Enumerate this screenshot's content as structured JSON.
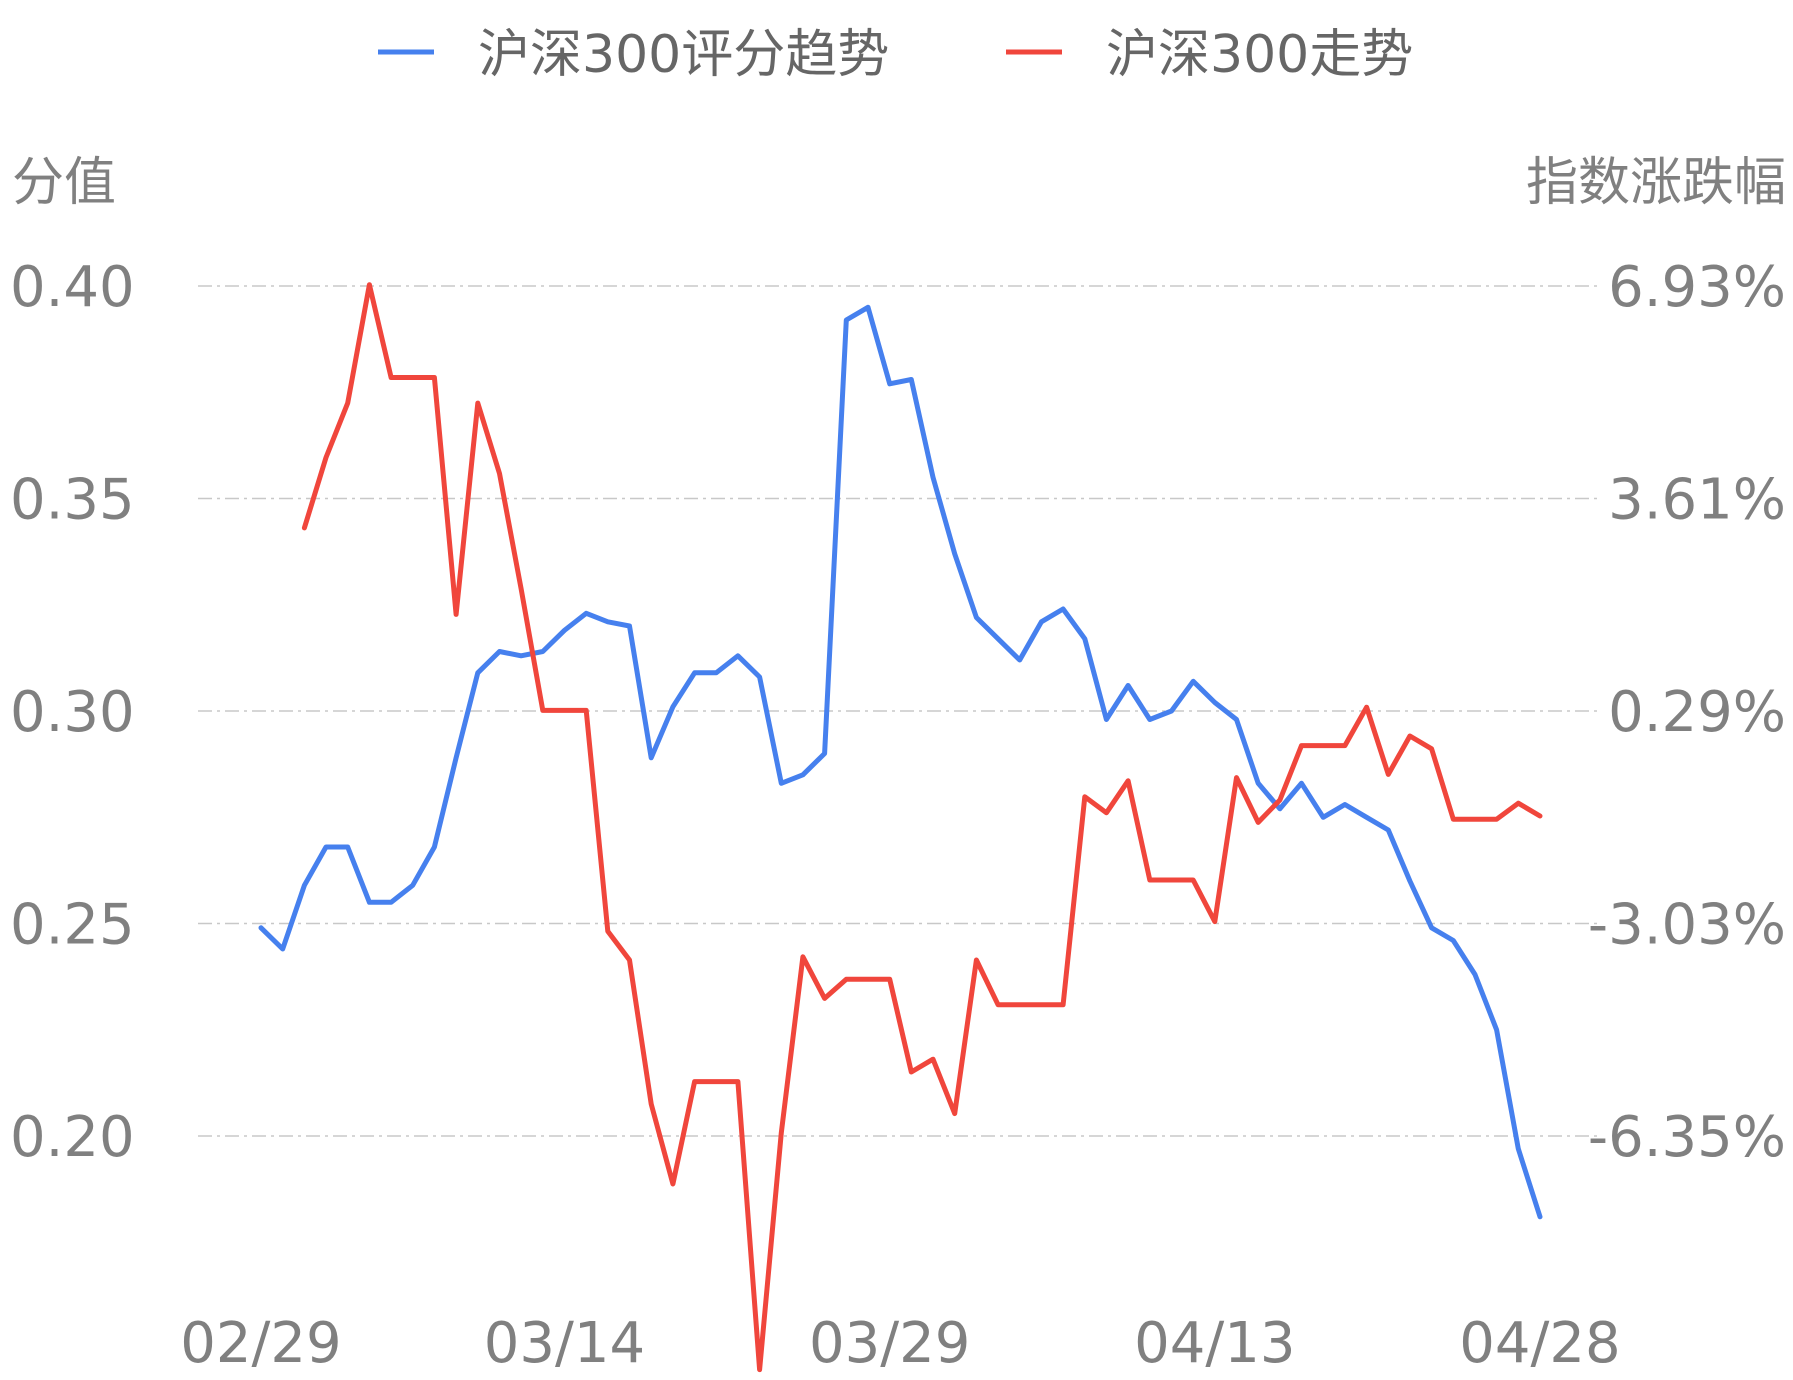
{
  "chart_data": {
    "type": "line",
    "legend": {
      "position": "top-center",
      "entries": [
        {
          "name": "沪深300评分趋势",
          "color": "#4680ee"
        },
        {
          "name": "沪深300走势",
          "color": "#f0463c"
        }
      ]
    },
    "left_axis": {
      "title": "分值",
      "ticks": [
        "0.40",
        "0.35",
        "0.30",
        "0.25",
        "0.20"
      ],
      "ylim": [
        0.2,
        0.4
      ]
    },
    "right_axis": {
      "title": "指数涨跌幅",
      "ticks": [
        "6.93%",
        "3.61%",
        "0.29%",
        "-3.03%",
        "-6.35%"
      ],
      "ylim": [
        -6.35,
        6.93
      ]
    },
    "x_tick_labels": [
      "02/29",
      "03/14",
      "03/29",
      "04/13",
      "04/28"
    ],
    "x_tick_index": [
      0,
      14,
      29,
      44,
      59
    ],
    "grid": true,
    "series": [
      {
        "name": "沪深300评分趋势",
        "axis": "left",
        "color": "#4680ee",
        "values": [
          0.249,
          0.244,
          0.259,
          0.268,
          0.268,
          0.255,
          0.255,
          0.259,
          0.268,
          0.289,
          0.309,
          0.314,
          0.313,
          0.314,
          0.319,
          0.323,
          0.321,
          0.32,
          0.289,
          0.301,
          0.309,
          0.309,
          0.313,
          0.308,
          0.283,
          0.285,
          0.29,
          0.392,
          0.395,
          0.377,
          0.378,
          0.355,
          0.337,
          0.322,
          0.317,
          0.312,
          0.321,
          0.324,
          0.317,
          0.298,
          0.306,
          0.298,
          0.3,
          0.307,
          0.302,
          0.298,
          0.283,
          0.277,
          0.283,
          0.275,
          0.278,
          0.275,
          0.272,
          0.26,
          0.249,
          0.246,
          0.238,
          0.225,
          0.197,
          0.181
        ]
      },
      {
        "name": "沪深300走势",
        "axis": "right",
        "color": "#f0463c",
        "values": [
          null,
          null,
          3.15,
          4.25,
          5.1,
          6.95,
          5.5,
          5.5,
          5.5,
          1.8,
          5.1,
          4.0,
          2.2,
          0.3,
          0.3,
          0.3,
          -3.15,
          -3.6,
          -5.85,
          -7.1,
          -5.5,
          -5.5,
          -5.5,
          -10.0,
          -6.3,
          -3.55,
          -4.2,
          -3.9,
          -3.9,
          -3.9,
          -5.35,
          -5.15,
          -6.0,
          -3.6,
          -4.3,
          -4.3,
          -4.3,
          -4.3,
          -1.05,
          -1.3,
          -0.8,
          -2.35,
          -2.35,
          -2.35,
          -3.0,
          -0.75,
          -1.45,
          -1.1,
          -0.25,
          -0.25,
          -0.25,
          0.35,
          -0.7,
          -0.1,
          -0.3,
          -1.4,
          -1.4,
          -1.4,
          -1.15,
          -1.35
        ]
      }
    ]
  }
}
